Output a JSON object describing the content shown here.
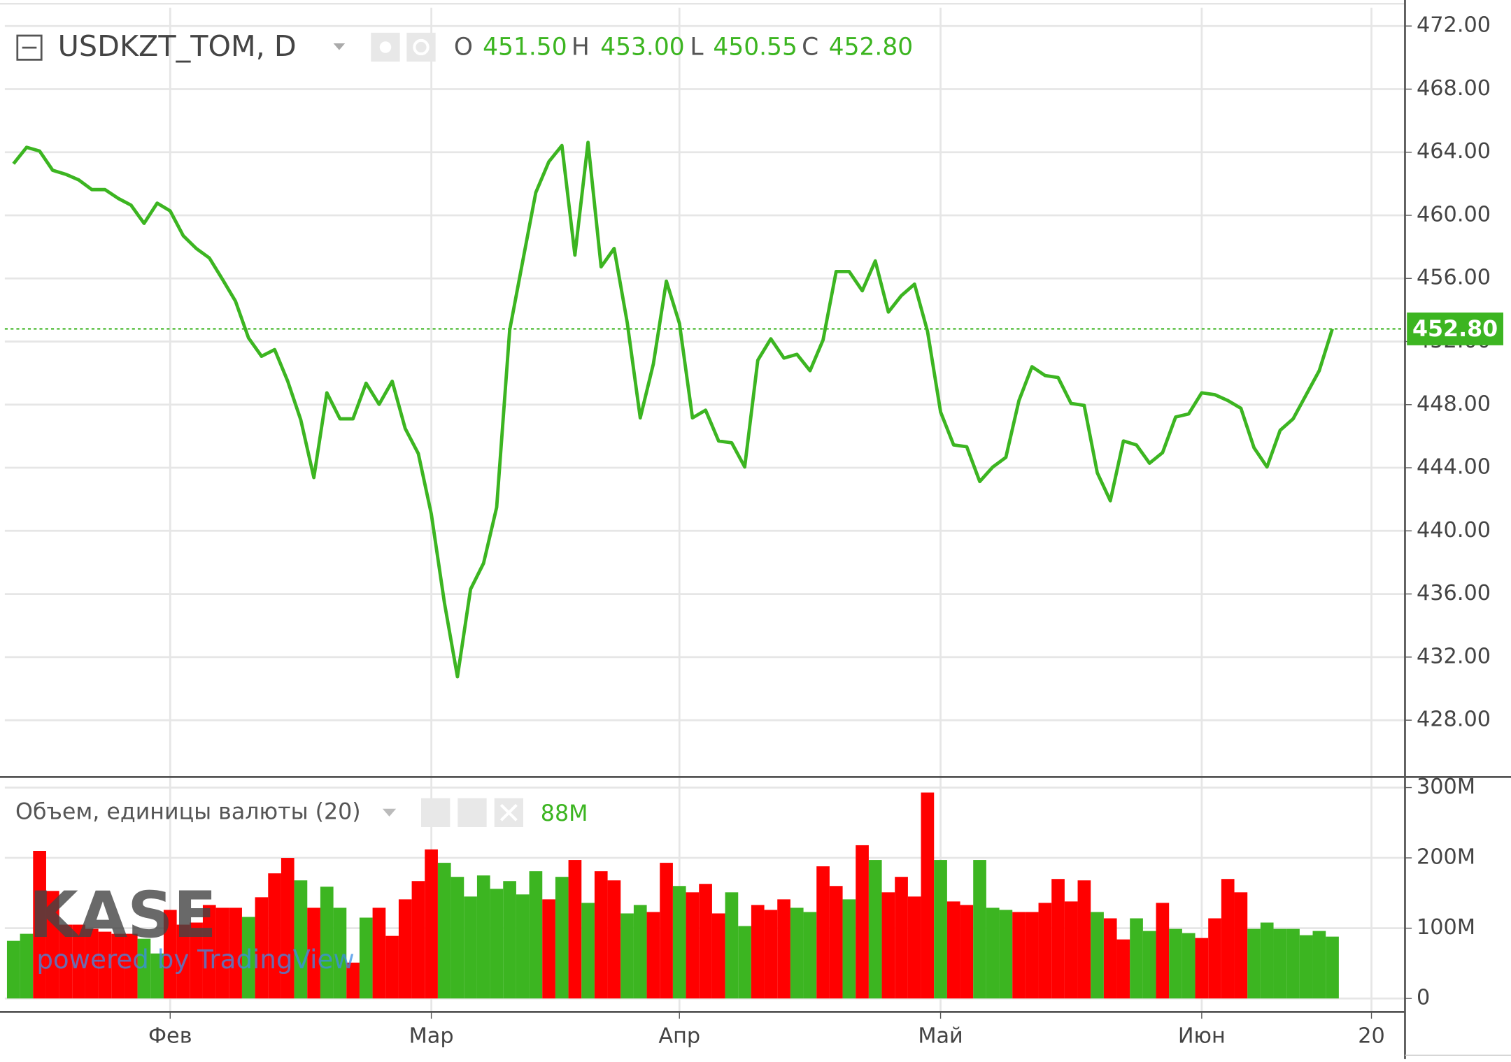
{
  "chart_data": [
    {
      "type": "line",
      "title": "USDKZT_TOM, D",
      "ohlc": [
        [
          "O",
          "451.50"
        ],
        [
          "H",
          "453.00"
        ],
        [
          "L",
          "450.55"
        ],
        [
          "C",
          "452.80"
        ]
      ],
      "last_label": "452.80",
      "watermark": "KASE",
      "watermark_note": "powered by TradingView",
      "categories": [
        null,
        null,
        null,
        null,
        null,
        null,
        null,
        null,
        null,
        null,
        null,
        null,
        "Фев",
        null,
        null,
        null,
        null,
        null,
        null,
        null,
        null,
        null,
        null,
        null,
        null,
        null,
        null,
        null,
        null,
        null,
        null,
        null,
        "Мар",
        null,
        null,
        null,
        null,
        null,
        null,
        null,
        null,
        null,
        null,
        null,
        null,
        null,
        null,
        null,
        null,
        null,
        null,
        "Апр",
        null,
        null,
        null,
        null,
        null,
        null,
        null,
        null,
        null,
        null,
        null,
        null,
        null,
        null,
        null,
        null,
        null,
        null,
        null,
        "Май",
        null,
        null,
        null,
        null,
        null,
        null,
        null,
        null,
        null,
        null,
        null,
        null,
        null,
        null,
        null,
        null,
        null,
        null,
        null,
        "Июн",
        null,
        null,
        null,
        null,
        null,
        null,
        null,
        null,
        null,
        null,
        null,
        null,
        "20"
      ],
      "values": [
        463.27,
        464.31,
        464.07,
        462.85,
        462.6,
        462.24,
        461.63,
        461.63,
        461.08,
        460.65,
        459.49,
        460.77,
        460.28,
        458.7,
        457.9,
        457.29,
        455.95,
        454.55,
        452.23,
        451.07,
        451.49,
        449.48,
        447.04,
        443.38,
        448.75,
        447.1,
        447.1,
        449.36,
        448.02,
        449.48,
        446.49,
        444.9,
        441.06,
        435.44,
        430.75,
        436.3,
        437.95,
        441.49,
        452.72,
        457.11,
        461.44,
        463.4,
        464.43,
        457.48,
        464.62,
        456.74,
        457.9,
        453.2,
        447.16,
        450.58,
        455.83,
        453.14,
        447.16,
        447.65,
        445.7,
        445.58,
        444.05,
        450.82,
        452.17,
        450.95,
        451.19,
        450.15,
        452.1,
        456.44,
        456.44,
        455.22,
        457.11,
        453.87,
        454.91,
        455.64,
        452.65,
        447.53,
        445.45,
        445.33,
        443.13,
        444.05,
        444.66,
        448.26,
        450.4,
        449.85,
        449.72,
        448.08,
        447.95,
        443.68,
        441.91,
        445.7,
        445.45,
        444.29,
        444.96,
        447.22,
        447.41,
        448.75,
        448.63,
        448.26,
        447.77,
        445.27,
        444.05,
        446.37,
        447.1,
        448.63,
        450.15,
        452.8,
        null,
        null,
        null
      ],
      "color": "#3cb521",
      "ylim": [
        424.46,
        473.16
      ],
      "yticks": [
        {
          "value": 428,
          "label": "428.00"
        },
        {
          "value": 432,
          "label": "432.00"
        },
        {
          "value": 436,
          "label": "436.00"
        },
        {
          "value": 440,
          "label": "440.00"
        },
        {
          "value": 444,
          "label": "444.00"
        },
        {
          "value": 448,
          "label": "448.00"
        },
        {
          "value": 452,
          "label": "452.00"
        },
        {
          "value": 456,
          "label": "456.00"
        },
        {
          "value": 460,
          "label": "460.00"
        },
        {
          "value": 464,
          "label": "464.00"
        },
        {
          "value": 468,
          "label": "468.00"
        },
        {
          "value": 472,
          "label": "472.00"
        }
      ],
      "grid": true
    },
    {
      "type": "bar",
      "title": "Объем, единицы валюты (20)",
      "last_label": "88M",
      "values": [
        82,
        92,
        210,
        153,
        105,
        105,
        99,
        95,
        92,
        92,
        85,
        64,
        126,
        105,
        108,
        133,
        129,
        129,
        116,
        144,
        178,
        200,
        168,
        129,
        159,
        129,
        51,
        115,
        129,
        89,
        141,
        167,
        212,
        193,
        173,
        145,
        175,
        156,
        167,
        148,
        181,
        141,
        173,
        197,
        136,
        181,
        168,
        121,
        133,
        123,
        193,
        160,
        151,
        163,
        121,
        151,
        103,
        133,
        126,
        141,
        129,
        123,
        188,
        160,
        141,
        218,
        197,
        151,
        173,
        145,
        293,
        197,
        138,
        133,
        197,
        129,
        126,
        123,
        123,
        136,
        170,
        138,
        168,
        123,
        114,
        84,
        114,
        96,
        136,
        99,
        93,
        86,
        114,
        170,
        151,
        99,
        108,
        99,
        99,
        90,
        96,
        88,
        null,
        null,
        null
      ],
      "colors": [
        "#3cb521",
        "#3cb521",
        "#ff0000",
        "#ff0000",
        "#ff0000",
        "#ff0000",
        "#ff0000",
        "#ff0000",
        "#ff0000",
        "#ff0000",
        "#3cb521",
        "#3cb521",
        "#ff0000",
        "#ff0000",
        "#ff0000",
        "#ff0000",
        "#ff0000",
        "#ff0000",
        "#3cb521",
        "#ff0000",
        "#ff0000",
        "#ff0000",
        "#3cb521",
        "#ff0000",
        "#3cb521",
        "#3cb521",
        "#ff0000",
        "#3cb521",
        "#ff0000",
        "#ff0000",
        "#ff0000",
        "#ff0000",
        "#ff0000",
        "#3cb521",
        "#3cb521",
        "#3cb521",
        "#3cb521",
        "#3cb521",
        "#3cb521",
        "#3cb521",
        "#3cb521",
        "#ff0000",
        "#3cb521",
        "#ff0000",
        "#3cb521",
        "#ff0000",
        "#ff0000",
        "#3cb521",
        "#3cb521",
        "#ff0000",
        "#ff0000",
        "#3cb521",
        "#ff0000",
        "#ff0000",
        "#ff0000",
        "#3cb521",
        "#3cb521",
        "#ff0000",
        "#ff0000",
        "#ff0000",
        "#3cb521",
        "#3cb521",
        "#ff0000",
        "#ff0000",
        "#3cb521",
        "#ff0000",
        "#3cb521",
        "#ff0000",
        "#ff0000",
        "#ff0000",
        "#ff0000",
        "#3cb521",
        "#ff0000",
        "#ff0000",
        "#3cb521",
        "#3cb521",
        "#3cb521",
        "#ff0000",
        "#ff0000",
        "#ff0000",
        "#ff0000",
        "#ff0000",
        "#ff0000",
        "#3cb521",
        "#ff0000",
        "#ff0000",
        "#3cb521",
        "#3cb521",
        "#ff0000",
        "#3cb521",
        "#3cb521",
        "#ff0000",
        "#ff0000",
        "#ff0000",
        "#ff0000",
        "#3cb521",
        "#3cb521",
        "#3cb521",
        "#3cb521",
        "#3cb521",
        "#3cb521",
        "#3cb521",
        null,
        null,
        null
      ],
      "ylim": [
        -17.8,
        313.7
      ],
      "yticks": [
        0,
        {
          "value": 100,
          "label": "100M"
        },
        {
          "value": 200,
          "label": "200M"
        },
        {
          "value": 300,
          "label": "300M"
        }
      ],
      "grid": true
    }
  ]
}
